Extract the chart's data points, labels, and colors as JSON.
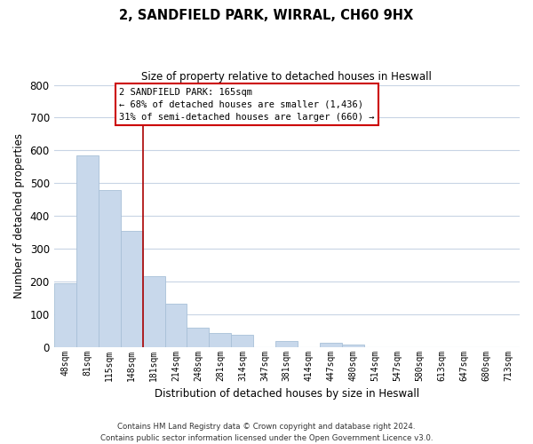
{
  "title": "2, SANDFIELD PARK, WIRRAL, CH60 9HX",
  "subtitle": "Size of property relative to detached houses in Heswall",
  "xlabel": "Distribution of detached houses by size in Heswall",
  "ylabel": "Number of detached properties",
  "bar_labels": [
    "48sqm",
    "81sqm",
    "115sqm",
    "148sqm",
    "181sqm",
    "214sqm",
    "248sqm",
    "281sqm",
    "314sqm",
    "347sqm",
    "381sqm",
    "414sqm",
    "447sqm",
    "480sqm",
    "514sqm",
    "547sqm",
    "580sqm",
    "613sqm",
    "647sqm",
    "680sqm",
    "713sqm"
  ],
  "bar_heights": [
    193,
    585,
    480,
    355,
    217,
    133,
    60,
    43,
    37,
    0,
    17,
    0,
    12,
    7,
    0,
    0,
    0,
    0,
    0,
    0,
    0
  ],
  "bar_color": "#c8d8eb",
  "bar_edge_color": "#a8c0d8",
  "ylim": [
    0,
    800
  ],
  "yticks": [
    0,
    100,
    200,
    300,
    400,
    500,
    600,
    700,
    800
  ],
  "property_line_x": 3.5,
  "property_line_color": "#aa0000",
  "annotation_title": "2 SANDFIELD PARK: 165sqm",
  "annotation_line1": "← 68% of detached houses are smaller (1,436)",
  "annotation_line2": "31% of semi-detached houses are larger (660) →",
  "footer_line1": "Contains HM Land Registry data © Crown copyright and database right 2024.",
  "footer_line2": "Contains public sector information licensed under the Open Government Licence v3.0.",
  "background_color": "#ffffff",
  "grid_color": "#c8d4e4"
}
